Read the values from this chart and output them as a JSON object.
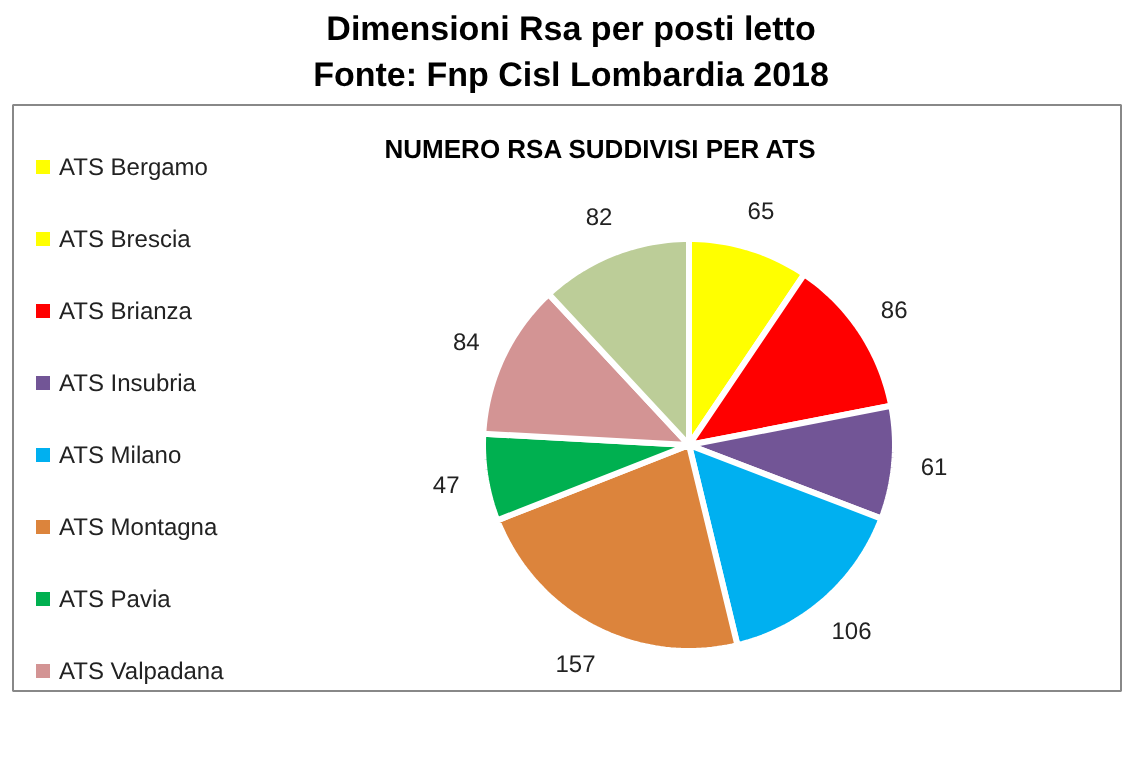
{
  "chart_data": {
    "type": "pie",
    "title": "Dimensioni Rsa per posti letto",
    "annotations": [
      "Fonte: Fnp Cisl Lombardia 2018"
    ],
    "subtitle": "NUMERO RSA SUDDIVISI PER ATS",
    "categories": [
      "ATS Bergamo",
      "ATS Brescia",
      "ATS Brianza",
      "ATS Insubria",
      "ATS Milano",
      "ATS Montagna",
      "ATS Pavia",
      "ATS Valpadana",
      null
    ],
    "values": [
      65,
      null,
      86,
      61,
      106,
      157,
      47,
      84,
      82
    ],
    "colors": [
      "#ffff00",
      "#ffff00",
      "#ff0000",
      "#725596",
      "#00b0f0",
      "#dc843c",
      "#00b050",
      "#d39494",
      "#bccd98"
    ],
    "data_labels": true,
    "legend": "left"
  }
}
